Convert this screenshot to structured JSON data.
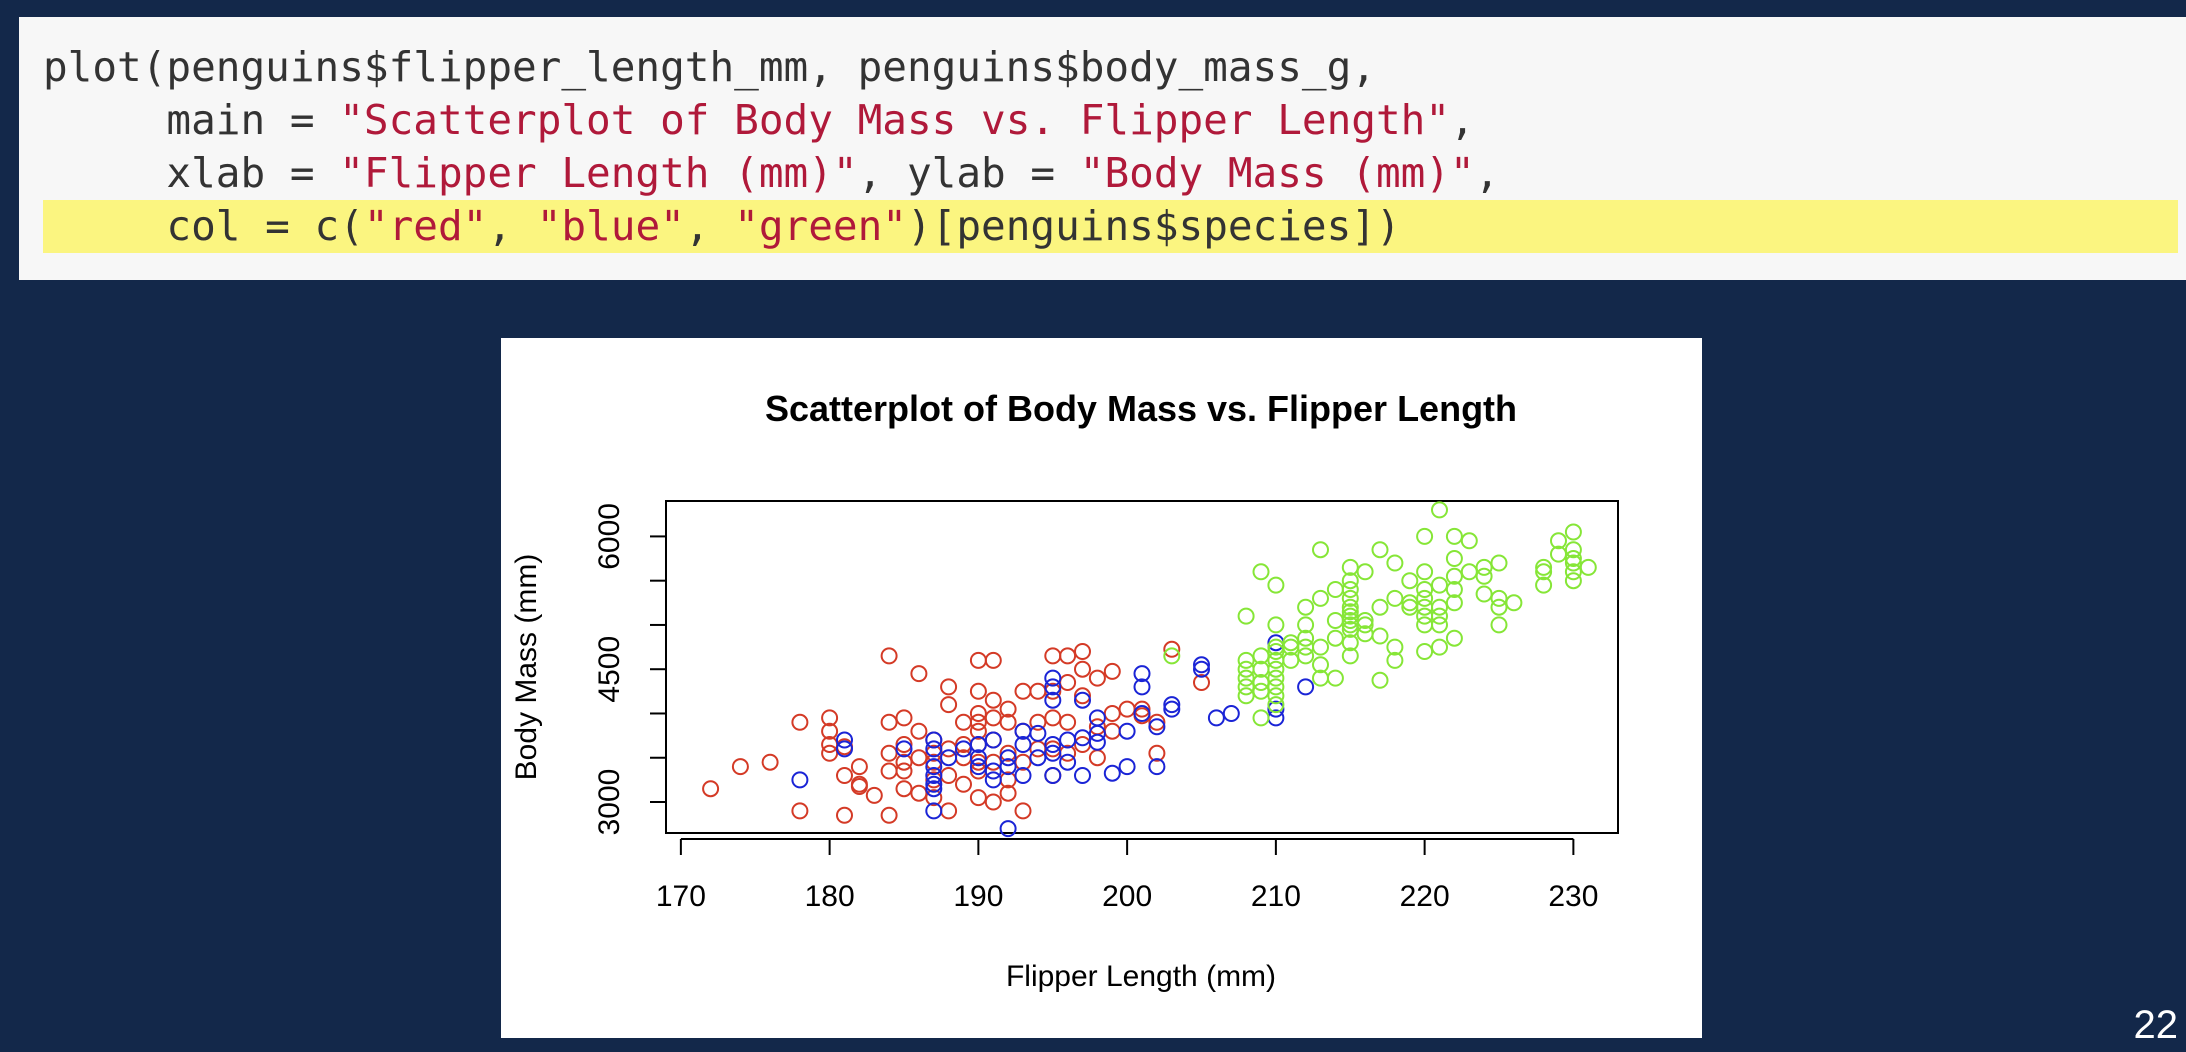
{
  "code": {
    "line1": "plot(penguins$flipper_length_mm, penguins$body_mass_g,",
    "line2_pre": "     main = ",
    "line2_str": "\"Scatterplot of Body Mass vs. Flipper Length\"",
    "line2_post": ",",
    "line3_pre": "     xlab = ",
    "line3_str1": "\"Flipper Length (mm)\"",
    "line3_mid": ", ylab = ",
    "line3_str2": "\"Body Mass (mm)\"",
    "line3_post": ",",
    "line4_pre": "     col = c(",
    "line4_str1": "\"red\"",
    "line4_sep1": ", ",
    "line4_str2": "\"blue\"",
    "line4_sep2": ", ",
    "line4_str3": "\"green\"",
    "line4_post": ")[penguins$species])"
  },
  "slide_number": "22",
  "colors": {
    "background": "#13284a",
    "highlight": "#fbf580",
    "string": "#b0193a",
    "species_red": "#d43a26",
    "species_blue": "#1a24d6",
    "species_green": "#86e637"
  },
  "chart_data": {
    "type": "scatter",
    "title": "Scatterplot of Body Mass vs. Flipper Length",
    "xlabel": "Flipper Length (mm)",
    "ylabel": "Body Mass (mm)",
    "xlim": [
      169,
      233
    ],
    "ylim": [
      2650,
      6400
    ],
    "xticks": [
      170,
      180,
      190,
      200,
      210,
      220,
      230
    ],
    "yticks": [
      3000,
      3500,
      4000,
      4500,
      5000,
      5500,
      6000
    ],
    "ytick_labels": [
      "3000",
      "",
      "",
      "4500",
      "",
      "",
      "6000"
    ],
    "grid": false,
    "series": [
      {
        "color": "#d43a26",
        "points": [
          [
            172,
            3150
          ],
          [
            174,
            3400
          ],
          [
            176,
            3450
          ],
          [
            178,
            2900
          ],
          [
            178,
            3900
          ],
          [
            180,
            3550
          ],
          [
            180,
            3650
          ],
          [
            180,
            3800
          ],
          [
            180,
            3950
          ],
          [
            181,
            2850
          ],
          [
            181,
            3300
          ],
          [
            181,
            3625
          ],
          [
            182,
            3175
          ],
          [
            182,
            3200
          ],
          [
            182,
            3400
          ],
          [
            183,
            3075
          ],
          [
            184,
            2850
          ],
          [
            184,
            3350
          ],
          [
            184,
            3550
          ],
          [
            184,
            3900
          ],
          [
            184,
            4650
          ],
          [
            185,
            3150
          ],
          [
            185,
            3350
          ],
          [
            185,
            3450
          ],
          [
            185,
            3650
          ],
          [
            185,
            3950
          ],
          [
            186,
            3100
          ],
          [
            186,
            3500
          ],
          [
            186,
            3800
          ],
          [
            186,
            4450
          ],
          [
            187,
            3050
          ],
          [
            187,
            3250
          ],
          [
            187,
            3450
          ],
          [
            187,
            3550
          ],
          [
            187,
            3700
          ],
          [
            188,
            2900
          ],
          [
            188,
            3300
          ],
          [
            188,
            3600
          ],
          [
            188,
            4100
          ],
          [
            188,
            4300
          ],
          [
            189,
            3200
          ],
          [
            189,
            3500
          ],
          [
            189,
            3650
          ],
          [
            189,
            3900
          ],
          [
            190,
            3050
          ],
          [
            190,
            3350
          ],
          [
            190,
            3450
          ],
          [
            190,
            3650
          ],
          [
            190,
            3800
          ],
          [
            190,
            3900
          ],
          [
            190,
            4000
          ],
          [
            190,
            4250
          ],
          [
            190,
            4600
          ],
          [
            191,
            3000
          ],
          [
            191,
            3450
          ],
          [
            191,
            3700
          ],
          [
            191,
            3950
          ],
          [
            191,
            4150
          ],
          [
            191,
            4600
          ],
          [
            192,
            3100
          ],
          [
            192,
            3250
          ],
          [
            192,
            3550
          ],
          [
            192,
            3900
          ],
          [
            192,
            4050
          ],
          [
            193,
            2900
          ],
          [
            193,
            3450
          ],
          [
            193,
            3800
          ],
          [
            193,
            4250
          ],
          [
            194,
            3600
          ],
          [
            194,
            3900
          ],
          [
            194,
            4250
          ],
          [
            195,
            3300
          ],
          [
            195,
            3600
          ],
          [
            195,
            3950
          ],
          [
            195,
            4250
          ],
          [
            195,
            4650
          ],
          [
            196,
            3550
          ],
          [
            196,
            3900
          ],
          [
            196,
            4350
          ],
          [
            196,
            4650
          ],
          [
            197,
            3650
          ],
          [
            197,
            4200
          ],
          [
            197,
            4500
          ],
          [
            197,
            4700
          ],
          [
            198,
            3500
          ],
          [
            198,
            3850
          ],
          [
            198,
            4400
          ],
          [
            199,
            3800
          ],
          [
            199,
            4000
          ],
          [
            199,
            4475
          ],
          [
            200,
            4050
          ],
          [
            201,
            3975
          ],
          [
            201,
            4050
          ],
          [
            202,
            3550
          ],
          [
            202,
            3900
          ],
          [
            203,
            4725
          ],
          [
            205,
            4350
          ]
        ]
      },
      {
        "color": "#1a24d6",
        "points": [
          [
            178,
            3250
          ],
          [
            181,
            3600
          ],
          [
            181,
            3700
          ],
          [
            185,
            3600
          ],
          [
            187,
            2900
          ],
          [
            187,
            3150
          ],
          [
            187,
            3200
          ],
          [
            187,
            3300
          ],
          [
            187,
            3400
          ],
          [
            187,
            3600
          ],
          [
            187,
            3700
          ],
          [
            188,
            3500
          ],
          [
            189,
            3600
          ],
          [
            190,
            3400
          ],
          [
            190,
            3500
          ],
          [
            190,
            3650
          ],
          [
            191,
            3250
          ],
          [
            191,
            3350
          ],
          [
            191,
            3700
          ],
          [
            192,
            2700
          ],
          [
            192,
            3400
          ],
          [
            192,
            3500
          ],
          [
            193,
            3300
          ],
          [
            193,
            3650
          ],
          [
            193,
            3800
          ],
          [
            194,
            3500
          ],
          [
            194,
            3775
          ],
          [
            195,
            3300
          ],
          [
            195,
            3550
          ],
          [
            195,
            3650
          ],
          [
            195,
            4150
          ],
          [
            195,
            4300
          ],
          [
            195,
            4400
          ],
          [
            196,
            3450
          ],
          [
            196,
            3700
          ],
          [
            197,
            3300
          ],
          [
            197,
            3725
          ],
          [
            197,
            4150
          ],
          [
            198,
            3675
          ],
          [
            198,
            3775
          ],
          [
            198,
            3950
          ],
          [
            199,
            3325
          ],
          [
            200,
            3400
          ],
          [
            200,
            3800
          ],
          [
            201,
            4000
          ],
          [
            201,
            4300
          ],
          [
            201,
            4450
          ],
          [
            202,
            3400
          ],
          [
            202,
            3850
          ],
          [
            203,
            4050
          ],
          [
            203,
            4100
          ],
          [
            205,
            4500
          ],
          [
            205,
            4550
          ],
          [
            206,
            3950
          ],
          [
            207,
            4000
          ],
          [
            210,
            3950
          ],
          [
            210,
            4050
          ],
          [
            210,
            4800
          ],
          [
            212,
            4300
          ]
        ]
      },
      {
        "color": "#86e637",
        "points": [
          [
            203,
            4650
          ],
          [
            208,
            4200
          ],
          [
            208,
            4300
          ],
          [
            208,
            4400
          ],
          [
            208,
            4500
          ],
          [
            208,
            4600
          ],
          [
            208,
            5100
          ],
          [
            209,
            3950
          ],
          [
            209,
            4250
          ],
          [
            209,
            4350
          ],
          [
            209,
            4500
          ],
          [
            209,
            4650
          ],
          [
            209,
            5600
          ],
          [
            210,
            4100
          ],
          [
            210,
            4200
          ],
          [
            210,
            4300
          ],
          [
            210,
            4400
          ],
          [
            210,
            4500
          ],
          [
            210,
            4600
          ],
          [
            210,
            4700
          ],
          [
            210,
            4750
          ],
          [
            210,
            5000
          ],
          [
            210,
            5450
          ],
          [
            211,
            4600
          ],
          [
            211,
            4750
          ],
          [
            211,
            4800
          ],
          [
            212,
            4650
          ],
          [
            212,
            4750
          ],
          [
            212,
            4850
          ],
          [
            212,
            5000
          ],
          [
            212,
            5200
          ],
          [
            213,
            4400
          ],
          [
            213,
            4550
          ],
          [
            213,
            4750
          ],
          [
            213,
            5300
          ],
          [
            213,
            5850
          ],
          [
            214,
            4400
          ],
          [
            214,
            4850
          ],
          [
            214,
            5050
          ],
          [
            214,
            5400
          ],
          [
            215,
            4650
          ],
          [
            215,
            4800
          ],
          [
            215,
            4950
          ],
          [
            215,
            5000
          ],
          [
            215,
            5050
          ],
          [
            215,
            5100
          ],
          [
            215,
            5150
          ],
          [
            215,
            5200
          ],
          [
            215,
            5300
          ],
          [
            215,
            5400
          ],
          [
            215,
            5500
          ],
          [
            215,
            5650
          ],
          [
            216,
            4900
          ],
          [
            216,
            5000
          ],
          [
            216,
            5050
          ],
          [
            216,
            5600
          ],
          [
            217,
            4375
          ],
          [
            217,
            4875
          ],
          [
            217,
            5200
          ],
          [
            217,
            5850
          ],
          [
            218,
            4600
          ],
          [
            218,
            4750
          ],
          [
            218,
            5300
          ],
          [
            218,
            5700
          ],
          [
            219,
            5200
          ],
          [
            219,
            5250
          ],
          [
            219,
            5500
          ],
          [
            220,
            4700
          ],
          [
            220,
            5000
          ],
          [
            220,
            5100
          ],
          [
            220,
            5200
          ],
          [
            220,
            5300
          ],
          [
            220,
            5400
          ],
          [
            220,
            5600
          ],
          [
            220,
            6000
          ],
          [
            221,
            4750
          ],
          [
            221,
            5000
          ],
          [
            221,
            5100
          ],
          [
            221,
            5200
          ],
          [
            221,
            5450
          ],
          [
            221,
            6300
          ],
          [
            222,
            4850
          ],
          [
            222,
            5250
          ],
          [
            222,
            5400
          ],
          [
            222,
            5550
          ],
          [
            222,
            5750
          ],
          [
            222,
            6000
          ],
          [
            223,
            5600
          ],
          [
            223,
            5950
          ],
          [
            224,
            5350
          ],
          [
            224,
            5550
          ],
          [
            224,
            5650
          ],
          [
            225,
            5000
          ],
          [
            225,
            5200
          ],
          [
            225,
            5300
          ],
          [
            225,
            5700
          ],
          [
            226,
            5250
          ],
          [
            228,
            5450
          ],
          [
            228,
            5600
          ],
          [
            228,
            5650
          ],
          [
            229,
            5800
          ],
          [
            229,
            5950
          ],
          [
            230,
            5500
          ],
          [
            230,
            5600
          ],
          [
            230,
            5700
          ],
          [
            230,
            5750
          ],
          [
            230,
            5850
          ],
          [
            230,
            6050
          ],
          [
            231,
            5650
          ]
        ]
      }
    ]
  }
}
